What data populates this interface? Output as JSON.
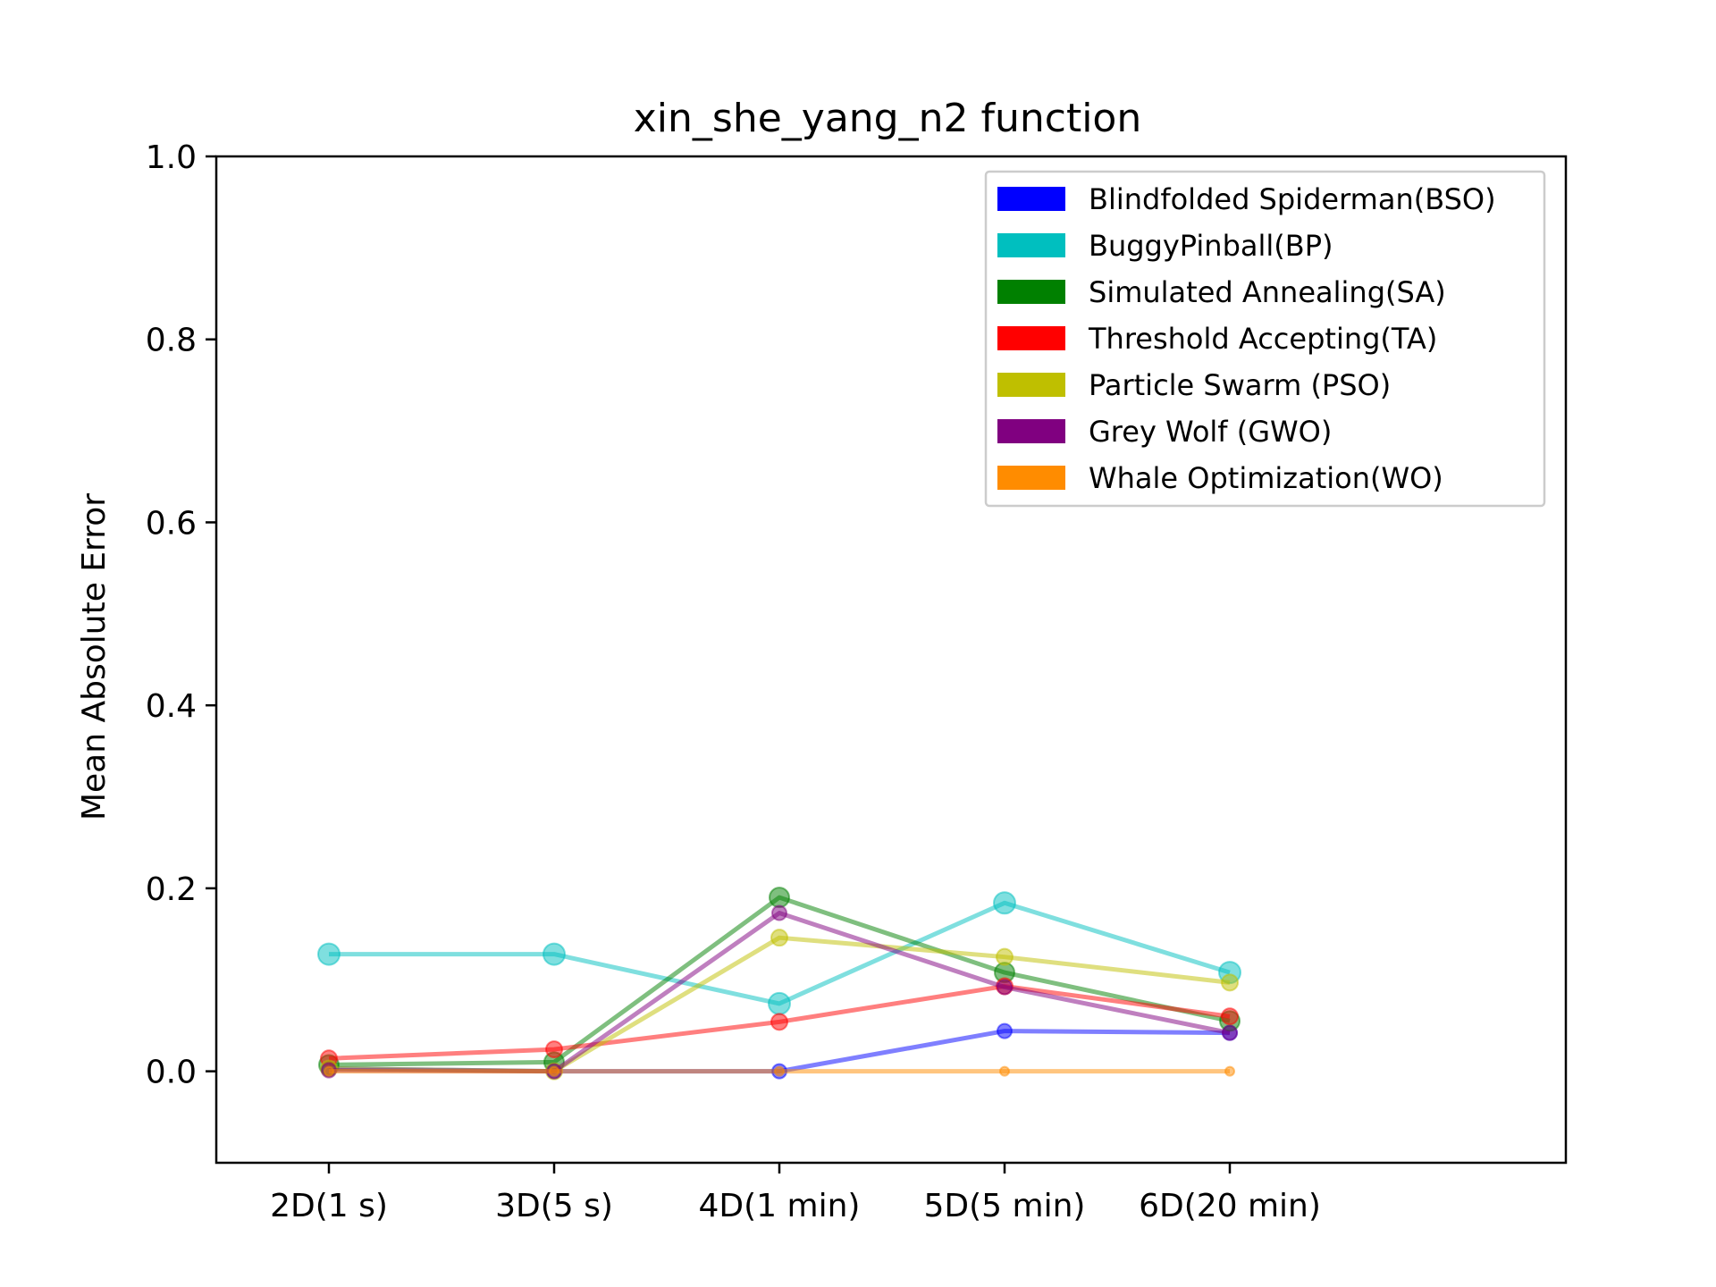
{
  "chart_data": {
    "type": "line",
    "title": "xin_she_yang_n2 function",
    "xlabel": "",
    "ylabel": "Mean Absolute Error",
    "categories": [
      "2D(1 s)",
      "3D(5 s)",
      "4D(1 min)",
      "5D(5 min)",
      "6D(20 min)"
    ],
    "ylim": [
      -0.1,
      1.0
    ],
    "yticks": [
      "0.0",
      "0.2",
      "0.4",
      "0.6",
      "0.8",
      "1.0"
    ],
    "grid": false,
    "legend_position": "top-right",
    "series": [
      {
        "name": "Blindfolded Spiderman(BSO)",
        "color": "#0000ff",
        "values": [
          0.003,
          0.0,
          0.0,
          0.044,
          0.042
        ]
      },
      {
        "name": "BuggyPinball(BP)",
        "color": "#00bfbf",
        "values": [
          0.128,
          0.128,
          0.074,
          0.184,
          0.108
        ]
      },
      {
        "name": "Simulated Annealing(SA)",
        "color": "#008000",
        "values": [
          0.007,
          0.01,
          0.19,
          0.108,
          0.055
        ]
      },
      {
        "name": "Threshold Accepting(TA)",
        "color": "#ff0000",
        "values": [
          0.014,
          0.024,
          0.054,
          0.093,
          0.06
        ]
      },
      {
        "name": "Particle Swarm (PSO)",
        "color": "#bfbf00",
        "values": [
          0.003,
          0.0,
          0.146,
          0.125,
          0.097
        ]
      },
      {
        "name": "Grey Wolf (GWO)",
        "color": "#800080",
        "values": [
          0.001,
          0.0,
          0.173,
          0.092,
          0.042
        ]
      },
      {
        "name": "Whale Optimization(WO)",
        "color": "#ff8c00",
        "values": [
          0.0,
          0.0,
          0.0,
          0.0,
          0.0
        ]
      }
    ]
  }
}
